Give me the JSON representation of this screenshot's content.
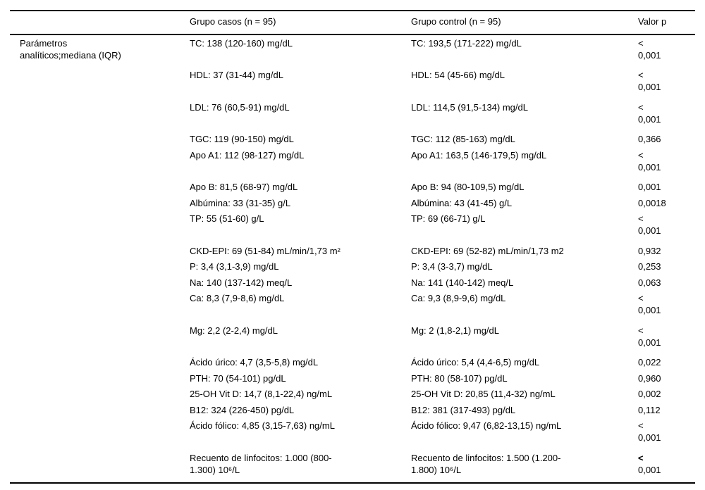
{
  "table": {
    "columns": [
      "",
      "Grupo casos (n = 95)",
      "Grupo control (n = 95)",
      "Valor p"
    ],
    "row_group_label": "Parámetros\nanalíticos;mediana (IQR)",
    "rows": [
      {
        "casos": "TC: 138 (120-160) mg/dL",
        "control": "TC: 193,5 (171-222) mg/dL",
        "p": "<\n0,001"
      },
      {
        "casos": "HDL: 37 (31-44) mg/dL",
        "control": "HDL: 54 (45-66) mg/dL",
        "p": "<\n0,001"
      },
      {
        "casos": "LDL: 76 (60,5-91) mg/dL",
        "control": "LDL: 114,5 (91,5-134) mg/dL",
        "p": "<\n0,001"
      },
      {
        "casos": "TGC: 119 (90-150) mg/dL",
        "control": "TGC: 112 (85-163) mg/dL",
        "p": "0,366"
      },
      {
        "casos": "Apo A1: 112 (98-127) mg/dL",
        "control": "Apo A1: 163,5 (146-179,5) mg/dL",
        "p": "<\n0,001"
      },
      {
        "casos": "Apo B: 81,5 (68-97) mg/dL",
        "control": "Apo B: 94 (80-109,5) mg/dL",
        "p": "0,001"
      },
      {
        "casos": "Albúmina: 33 (31-35) g/L",
        "control": "Albúmina: 43 (41-45) g/L",
        "p": "0,0018"
      },
      {
        "casos": "TP: 55 (51-60) g/L",
        "control": "TP: 69 (66-71) g/L",
        "p": "<\n0,001"
      },
      {
        "casos": "CKD-EPI: 69 (51-84) mL/min/1,73 m²",
        "control": "CKD-EPI: 69 (52-82) mL/min/1,73 m2",
        "p": "0,932"
      },
      {
        "casos": "P: 3,4 (3,1-3,9) mg/dL",
        "control": "P: 3,4 (3-3,7) mg/dL",
        "p": "0,253"
      },
      {
        "casos": "Na: 140 (137-142) meq/L",
        "control": "Na: 141 (140-142) meq/L",
        "p": "0,063"
      },
      {
        "casos": "Ca: 8,3 (7,9-8,6) mg/dL",
        "control": "Ca: 9,3 (8,9-9,6) mg/dL",
        "p": "<\n0,001"
      },
      {
        "casos": "Mg: 2,2 (2-2,4) mg/dL",
        "control": "Mg: 2 (1,8-2,1) mg/dL",
        "p": "<\n0,001"
      },
      {
        "casos": "Ácido úrico: 4,7 (3,5-5,8) mg/dL",
        "control": "Ácido úrico: 5,4 (4,4-6,5) mg/dL",
        "p": "0,022"
      },
      {
        "casos": "PTH: 70 (54-101) pg/dL",
        "control": "PTH: 80 (58-107) pg/dL",
        "p": "0,960"
      },
      {
        "casos": "25-OH Vit D: 14,7 (8,1-22,4) ng/mL",
        "control": "25-OH Vit D: 20,85 (11,4-32) ng/mL",
        "p": "0,002"
      },
      {
        "casos": "B12: 324 (226-450) pg/dL",
        "control": "B12: 381 (317-493) pg/dL",
        "p": "0,112"
      },
      {
        "casos": "Ácido fólico: 4,85 (3,15-7,63) ng/mL",
        "control": "Ácido fólico: 9,47 (6,82-13,15) ng/mL",
        "p": "<\n0,001"
      },
      {
        "casos": "Recuento de linfocitos: 1.000 (800-\n1.300) 10⁶/L",
        "control": "Recuento de linfocitos: 1.500 (1.200-\n1.800) 10⁶/L",
        "p": "<\n0,001",
        "p_bold": true
      }
    ]
  }
}
